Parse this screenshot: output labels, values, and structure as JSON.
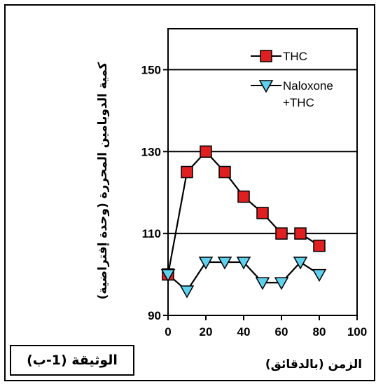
{
  "chart_data": {
    "type": "line",
    "xlabel": "الزمن (بالدقائق)",
    "ylabel": "كمية الدوبامين المحررة (وحدة إفتراضية)",
    "xlim": [
      0,
      100
    ],
    "ylim": [
      90,
      160
    ],
    "x_ticks": [
      0,
      20,
      40,
      60,
      80,
      100
    ],
    "y_ticks": [
      90,
      110,
      130,
      150
    ],
    "gridlines_y": [
      110,
      130,
      150
    ],
    "legend_position": "top-right",
    "series": [
      {
        "name": "THC",
        "marker": "square",
        "color": "#e02020",
        "points": [
          {
            "x": 0,
            "y": 100
          },
          {
            "x": 10,
            "y": 125
          },
          {
            "x": 20,
            "y": 130
          },
          {
            "x": 30,
            "y": 125
          },
          {
            "x": 40,
            "y": 119
          },
          {
            "x": 50,
            "y": 115
          },
          {
            "x": 60,
            "y": 110
          },
          {
            "x": 70,
            "y": 110
          },
          {
            "x": 80,
            "y": 107
          }
        ]
      },
      {
        "name": "Naloxone +THC",
        "marker": "triangle-down",
        "color": "#5fd0ee",
        "points": [
          {
            "x": 0,
            "y": 100
          },
          {
            "x": 10,
            "y": 96
          },
          {
            "x": 20,
            "y": 103
          },
          {
            "x": 30,
            "y": 103
          },
          {
            "x": 40,
            "y": 103
          },
          {
            "x": 50,
            "y": 98
          },
          {
            "x": 60,
            "y": 98
          },
          {
            "x": 70,
            "y": 103
          },
          {
            "x": 80,
            "y": 100
          }
        ]
      }
    ]
  },
  "legend": {
    "thc_label": "THC",
    "naloxone_line1": "Naloxone",
    "naloxone_line2": "+THC"
  },
  "document_label": "الوثيقة (1-ب)"
}
